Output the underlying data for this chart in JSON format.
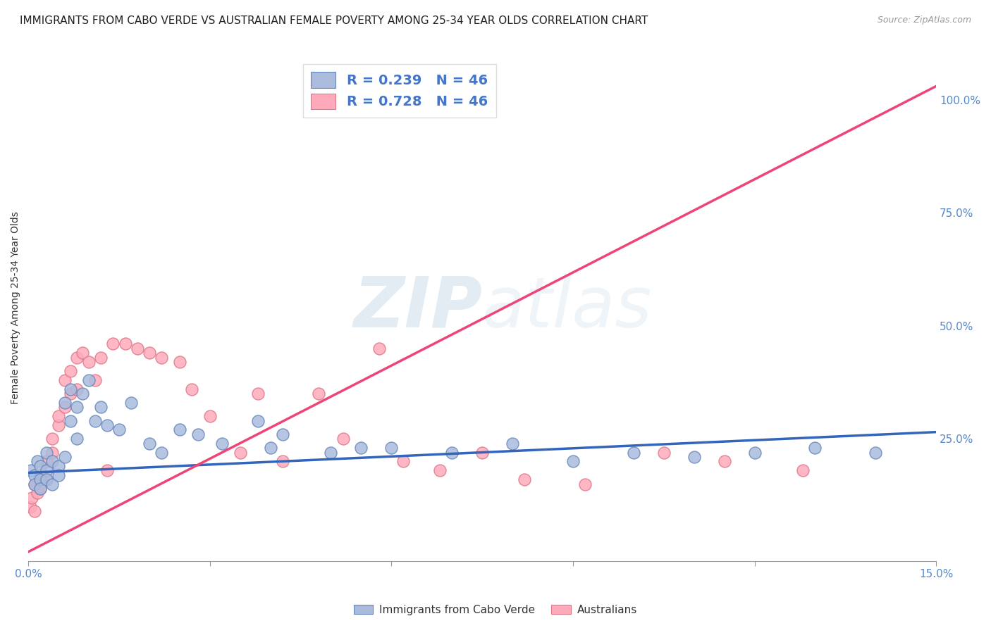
{
  "title": "IMMIGRANTS FROM CABO VERDE VS AUSTRALIAN FEMALE POVERTY AMONG 25-34 YEAR OLDS CORRELATION CHART",
  "source": "Source: ZipAtlas.com",
  "ylabel": "Female Poverty Among 25-34 Year Olds",
  "xlim": [
    0.0,
    0.15
  ],
  "ylim": [
    -0.02,
    1.1
  ],
  "xticks": [
    0.0,
    0.03,
    0.06,
    0.09,
    0.12,
    0.15
  ],
  "xticklabels": [
    "0.0%",
    "",
    "",
    "",
    "",
    "15.0%"
  ],
  "yticks_right": [
    0.0,
    0.25,
    0.5,
    0.75,
    1.0
  ],
  "ytick_right_labels": [
    "",
    "25.0%",
    "50.0%",
    "75.0%",
    "100.0%"
  ],
  "blue_scatter_x": [
    0.0005,
    0.001,
    0.001,
    0.0015,
    0.002,
    0.002,
    0.002,
    0.003,
    0.003,
    0.003,
    0.004,
    0.004,
    0.005,
    0.005,
    0.006,
    0.006,
    0.007,
    0.007,
    0.008,
    0.008,
    0.009,
    0.01,
    0.011,
    0.012,
    0.013,
    0.015,
    0.017,
    0.02,
    0.022,
    0.025,
    0.028,
    0.032,
    0.038,
    0.04,
    0.042,
    0.05,
    0.055,
    0.06,
    0.07,
    0.08,
    0.09,
    0.1,
    0.11,
    0.12,
    0.13,
    0.14
  ],
  "blue_scatter_y": [
    0.18,
    0.17,
    0.15,
    0.2,
    0.16,
    0.19,
    0.14,
    0.22,
    0.18,
    0.16,
    0.2,
    0.15,
    0.19,
    0.17,
    0.21,
    0.33,
    0.36,
    0.29,
    0.32,
    0.25,
    0.35,
    0.38,
    0.29,
    0.32,
    0.28,
    0.27,
    0.33,
    0.24,
    0.22,
    0.27,
    0.26,
    0.24,
    0.29,
    0.23,
    0.26,
    0.22,
    0.23,
    0.23,
    0.22,
    0.24,
    0.2,
    0.22,
    0.21,
    0.22,
    0.23,
    0.22
  ],
  "pink_scatter_x": [
    0.0003,
    0.0006,
    0.001,
    0.001,
    0.0015,
    0.002,
    0.002,
    0.003,
    0.003,
    0.004,
    0.004,
    0.005,
    0.005,
    0.006,
    0.006,
    0.007,
    0.007,
    0.008,
    0.008,
    0.009,
    0.01,
    0.011,
    0.012,
    0.013,
    0.014,
    0.016,
    0.018,
    0.02,
    0.022,
    0.025,
    0.027,
    0.03,
    0.035,
    0.038,
    0.042,
    0.048,
    0.052,
    0.058,
    0.062,
    0.068,
    0.075,
    0.082,
    0.092,
    0.105,
    0.115,
    0.128
  ],
  "pink_scatter_y": [
    0.1,
    0.12,
    0.09,
    0.15,
    0.13,
    0.17,
    0.14,
    0.2,
    0.16,
    0.22,
    0.25,
    0.28,
    0.3,
    0.32,
    0.38,
    0.35,
    0.4,
    0.43,
    0.36,
    0.44,
    0.42,
    0.38,
    0.43,
    0.18,
    0.46,
    0.46,
    0.45,
    0.44,
    0.43,
    0.42,
    0.36,
    0.3,
    0.22,
    0.35,
    0.2,
    0.35,
    0.25,
    0.45,
    0.2,
    0.18,
    0.22,
    0.16,
    0.15,
    0.22,
    0.2,
    0.18
  ],
  "blue_line_x": [
    0.0,
    0.15
  ],
  "blue_line_y": [
    0.175,
    0.265
  ],
  "pink_line_x": [
    0.0,
    0.15
  ],
  "pink_line_y": [
    0.0,
    1.03
  ],
  "blue_fill_color": "#AABBDD",
  "blue_edge_color": "#6688BB",
  "blue_line_color": "#3366BB",
  "pink_fill_color": "#FFAABB",
  "pink_edge_color": "#DD7788",
  "pink_line_color": "#EE4477",
  "legend_label_blue": "Immigrants from Cabo Verde",
  "legend_label_pink": "Australians",
  "watermark_zip": "ZIP",
  "watermark_atlas": "atlas",
  "background_color": "#FFFFFF",
  "grid_color": "#CCCCCC",
  "title_fontsize": 11,
  "axis_label_fontsize": 10,
  "tick_fontsize": 11
}
